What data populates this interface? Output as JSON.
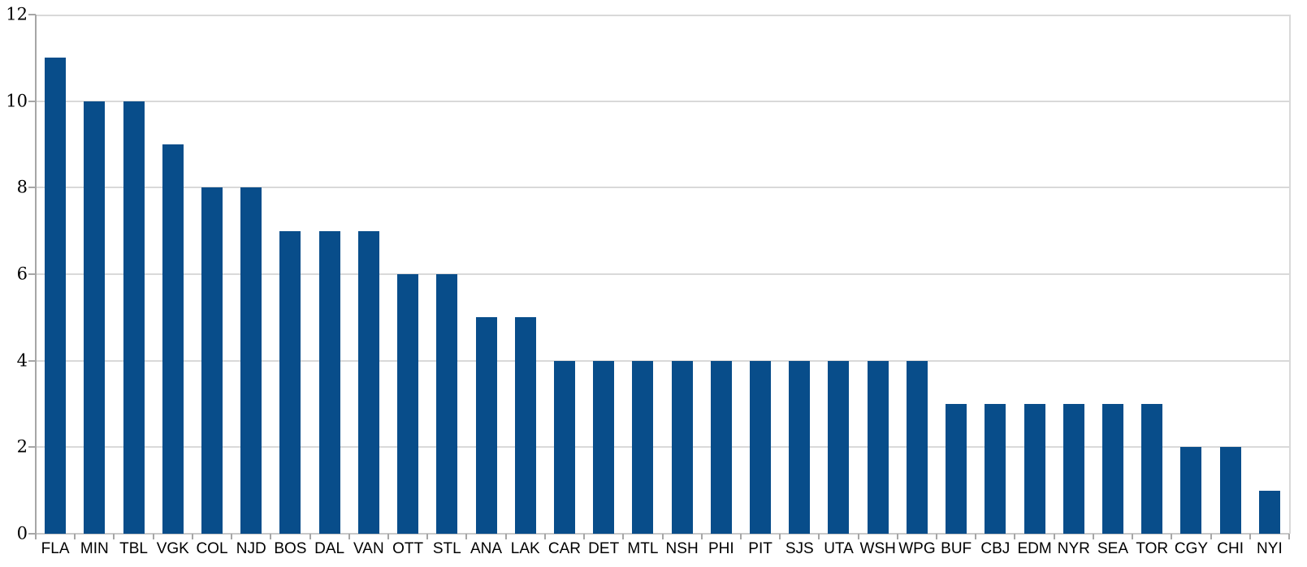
{
  "chart_data": {
    "type": "bar",
    "title": "",
    "xlabel": "",
    "ylabel": "",
    "categories": [
      "FLA",
      "MIN",
      "TBL",
      "VGK",
      "COL",
      "NJD",
      "BOS",
      "DAL",
      "VAN",
      "OTT",
      "STL",
      "ANA",
      "LAK",
      "CAR",
      "DET",
      "MTL",
      "NSH",
      "PHI",
      "PIT",
      "SJS",
      "UTA",
      "WSH",
      "WPG",
      "BUF",
      "CBJ",
      "EDM",
      "NYR",
      "SEA",
      "TOR",
      "CGY",
      "CHI",
      "NYI"
    ],
    "values": [
      11,
      10,
      10,
      9,
      8,
      8,
      7,
      7,
      7,
      6,
      6,
      5,
      5,
      4,
      4,
      4,
      4,
      4,
      4,
      4,
      4,
      4,
      4,
      3,
      3,
      3,
      3,
      3,
      3,
      2,
      2,
      1
    ],
    "ylim": [
      0,
      12
    ],
    "yticks": [
      0,
      2,
      4,
      6,
      8,
      10,
      12
    ],
    "grid": true,
    "legend": "none"
  },
  "colors": {
    "bar": "#084d8a",
    "gridline": "#d9d9d9",
    "baseline": "#c8c8c8",
    "border": "#d9d9d9",
    "axis_line": "#a6a6a6",
    "tick": "#a6a6a6",
    "label_text": "#000000",
    "background": "#ffffff"
  }
}
